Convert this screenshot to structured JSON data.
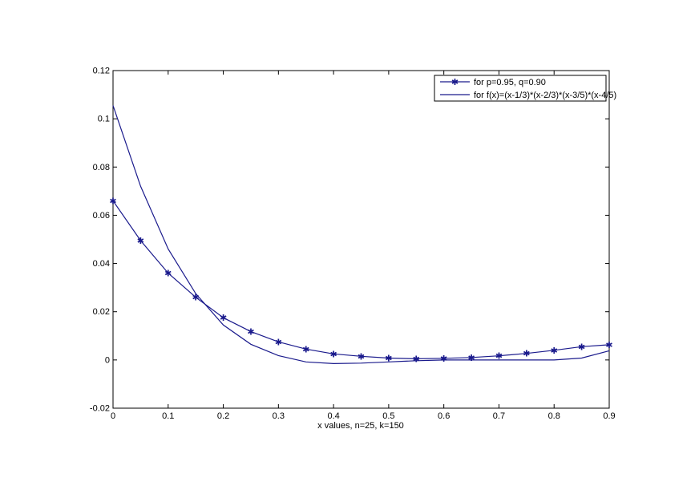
{
  "chart_data": {
    "type": "line",
    "title": "",
    "xlabel": "x values, n=25, k=150",
    "ylabel": "",
    "xlim": [
      0,
      0.9
    ],
    "ylim": [
      -0.02,
      0.12
    ],
    "grid": false,
    "legend_position": "top-right",
    "x_ticks": [
      "0",
      "0.1",
      "0.2",
      "0.3",
      "0.4",
      "0.5",
      "0.6",
      "0.7",
      "0.8",
      "0.9"
    ],
    "y_ticks": [
      "-0.02",
      "0",
      "0.02",
      "0.04",
      "0.06",
      "0.08",
      "0.1",
      "0.12"
    ],
    "x": [
      0,
      0.05,
      0.1,
      0.15,
      0.2,
      0.25,
      0.3,
      0.35,
      0.4,
      0.45,
      0.5,
      0.55,
      0.6,
      0.65,
      0.7,
      0.75,
      0.8,
      0.85,
      0.9
    ],
    "series": [
      {
        "name": "for p=0.95, q=0.90",
        "marker": "star",
        "color": "#1a1a8c",
        "values": [
          0.066,
          0.0495,
          0.036,
          0.026,
          0.0175,
          0.0118,
          0.0075,
          0.0045,
          0.0025,
          0.0015,
          0.0008,
          0.0005,
          0.0007,
          0.001,
          0.0017,
          0.0027,
          0.004,
          0.0055,
          0.0063
        ]
      },
      {
        "name": "for f(x)=(x-1/3)*(x-2/3)*(x-3/5)*(x-4/5)",
        "marker": "none",
        "color": "#1a1a8c",
        "values": [
          0.1055,
          0.072,
          0.046,
          0.0275,
          0.0145,
          0.0065,
          0.0018,
          -0.0008,
          -0.0015,
          -0.0013,
          -0.0008,
          -0.0003,
          0.0,
          0.0,
          0.0,
          0.0,
          0.0,
          0.0008,
          0.0038
        ]
      }
    ]
  }
}
